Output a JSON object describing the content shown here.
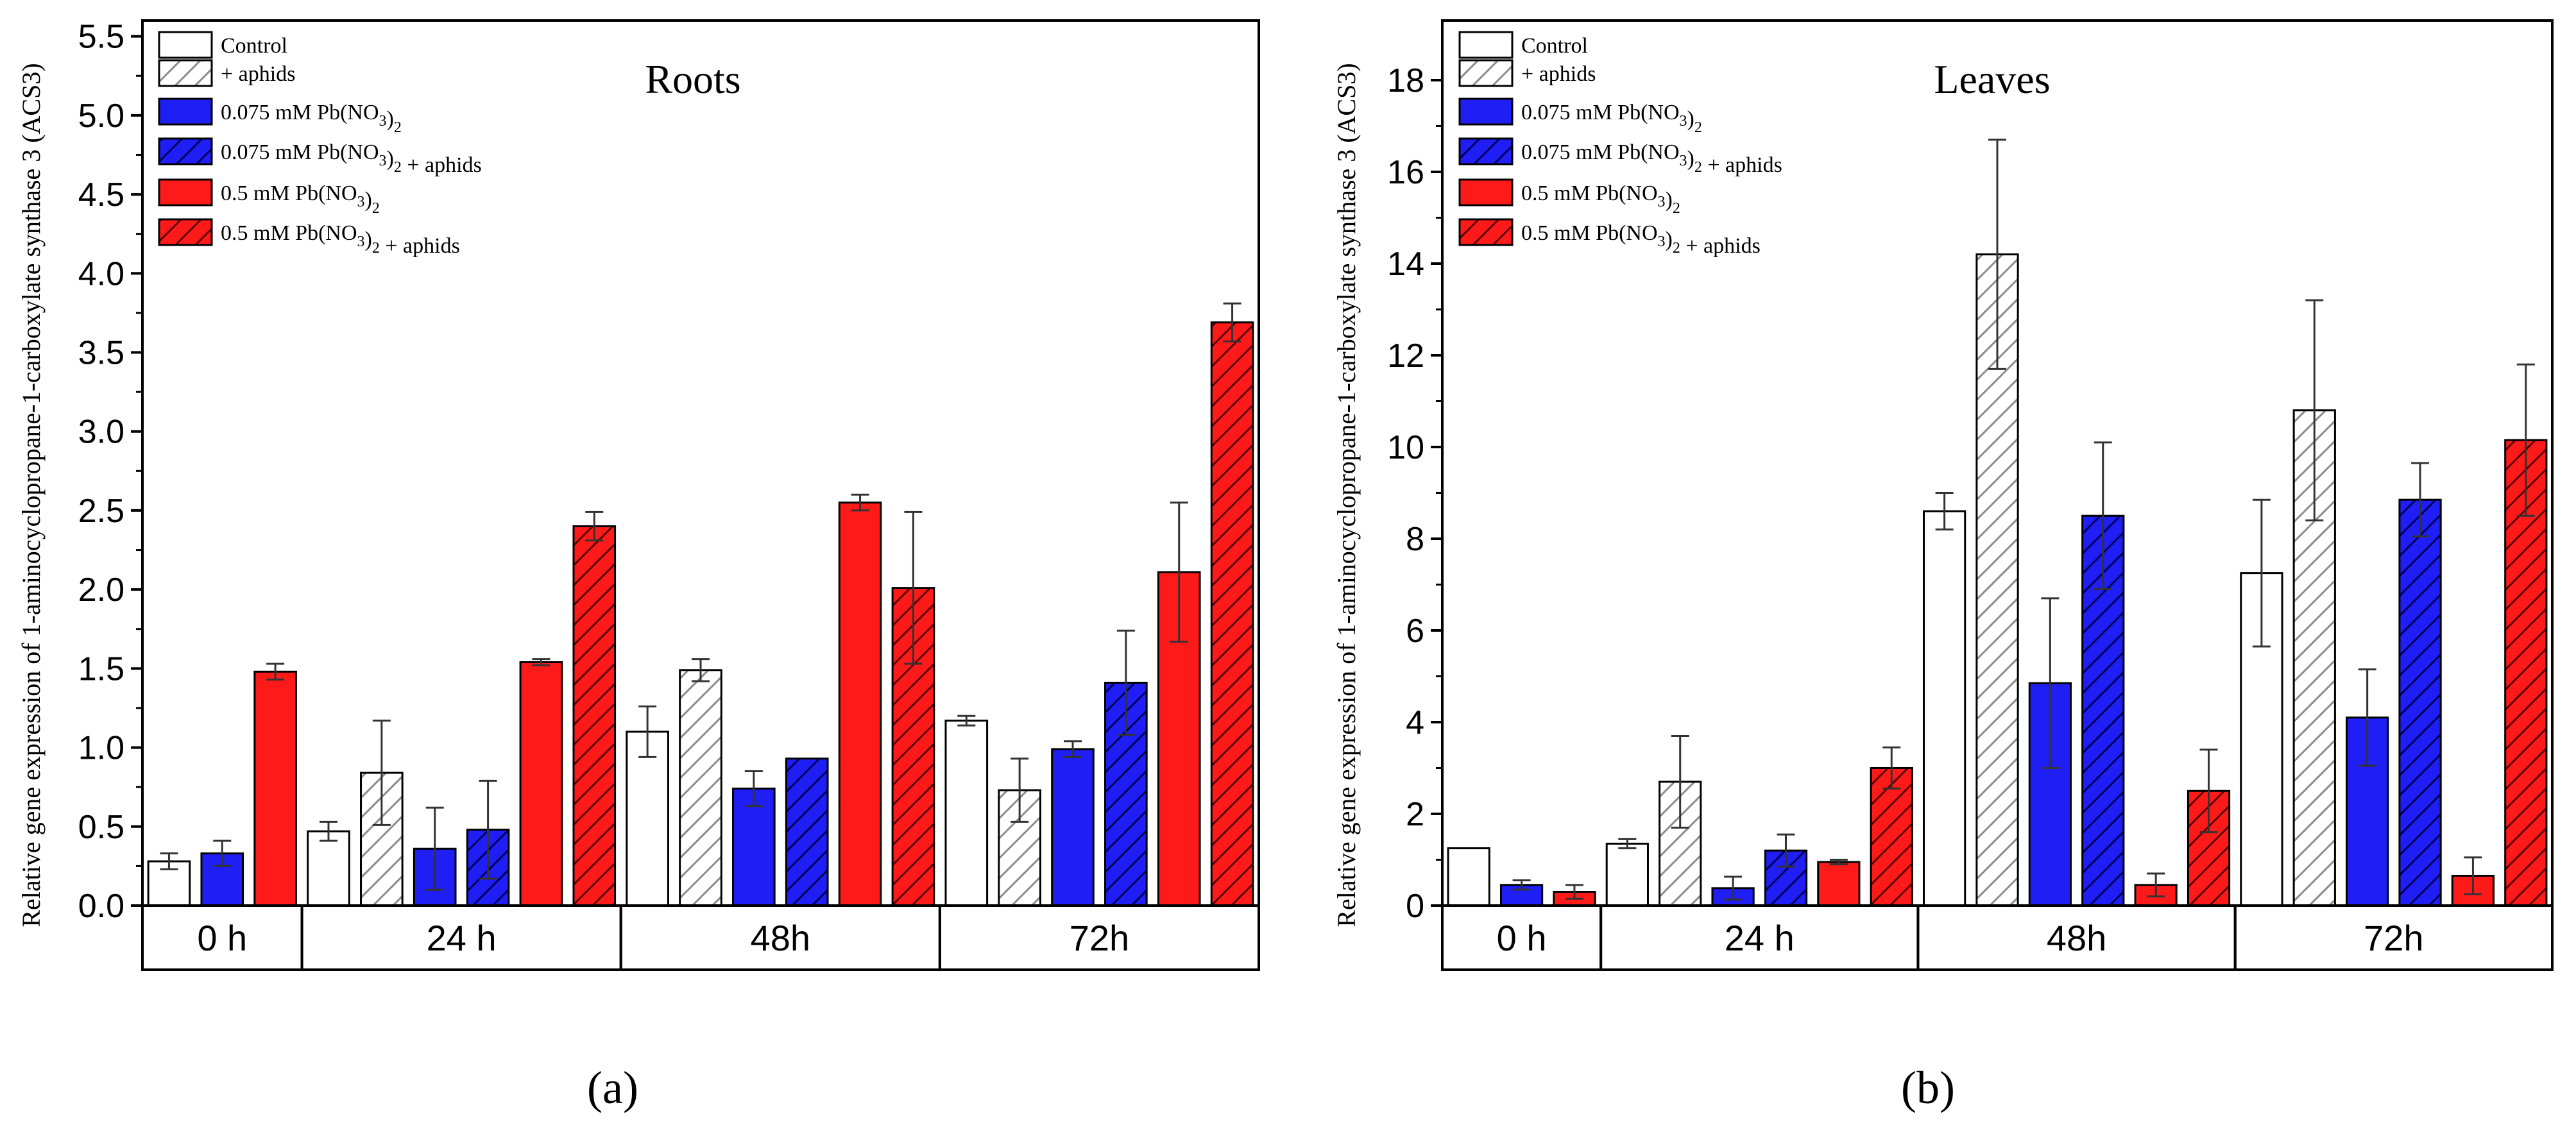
{
  "figure": {
    "panel_labels": [
      "(a)",
      "(b)"
    ]
  },
  "colors": {
    "control": "#ffffff",
    "aphids": "#ffffff",
    "pb075": "#1f1ff5",
    "pb075_aphids": "#1f1ff5",
    "pb05": "#ff1a1a",
    "pb05_aphids": "#ff1a1a",
    "aphids_hatch": "#8c8c8c",
    "blue_hatch": "#00005a",
    "red_hatch": "#5a0000"
  },
  "legend": [
    {
      "key": "control",
      "parts": [
        {
          "t": "Control"
        }
      ]
    },
    {
      "key": "aphids",
      "parts": [
        {
          "t": "+ aphids"
        }
      ]
    },
    {
      "key": "pb075",
      "parts": [
        {
          "t": "0.075 mM Pb(NO"
        },
        {
          "t": "3",
          "sub": true
        },
        {
          "t": ")"
        },
        {
          "t": "2",
          "sub": true
        }
      ]
    },
    {
      "key": "pb075_aphids",
      "parts": [
        {
          "t": "0.075 mM Pb(NO"
        },
        {
          "t": "3",
          "sub": true
        },
        {
          "t": ")"
        },
        {
          "t": "2",
          "sub": true
        },
        {
          "t": " +  aphids"
        }
      ]
    },
    {
      "key": "pb05",
      "parts": [
        {
          "t": "0.5 mM Pb(NO"
        },
        {
          "t": "3",
          "sub": true
        },
        {
          "t": ")"
        },
        {
          "t": "2",
          "sub": true
        }
      ]
    },
    {
      "key": "pb05_aphids",
      "parts": [
        {
          "t": "0.5 mM Pb(NO"
        },
        {
          "t": "3",
          "sub": true
        },
        {
          "t": ")"
        },
        {
          "t": "2",
          "sub": true
        },
        {
          "t": " + aphids"
        }
      ]
    }
  ],
  "chart_data": [
    {
      "type": "bar",
      "title": "Roots",
      "ylabel": "Relative gene expression of 1-aminocyclopropane-1-carboxylate synthase 3 (ACS3)",
      "xlabel": "",
      "ylim": [
        0,
        5.6
      ],
      "yticks": [
        0.0,
        0.5,
        1.0,
        1.5,
        2.0,
        2.5,
        3.0,
        3.5,
        4.0,
        4.5,
        5.0,
        5.5
      ],
      "ytick_labels": [
        "0.0",
        "0.5",
        "1.0",
        "1.5",
        "2.0",
        "2.5",
        "3.0",
        "3.5",
        "4.0",
        "4.5",
        "5.0",
        "5.5"
      ],
      "categories": [
        "0 h",
        "24 h",
        "48h",
        "72h"
      ],
      "groups": [
        {
          "category": "0 h",
          "bars": [
            {
              "key": "control",
              "value": 0.28,
              "err": 0.05
            },
            {
              "key": "pb075",
              "value": 0.33,
              "err": 0.08
            },
            {
              "key": "pb05",
              "value": 1.48,
              "err": 0.05
            }
          ]
        },
        {
          "category": "24 h",
          "bars": [
            {
              "key": "control",
              "value": 0.47,
              "err": 0.06
            },
            {
              "key": "aphids",
              "value": 0.84,
              "err": 0.33
            },
            {
              "key": "pb075",
              "value": 0.36,
              "err": 0.26
            },
            {
              "key": "pb075_aphids",
              "value": 0.48,
              "err": 0.31
            },
            {
              "key": "pb05",
              "value": 1.54,
              "err": 0.02
            },
            {
              "key": "pb05_aphids",
              "value": 2.4,
              "err": 0.09
            }
          ]
        },
        {
          "category": "48h",
          "bars": [
            {
              "key": "control",
              "value": 1.1,
              "err": 0.16
            },
            {
              "key": "aphids",
              "value": 1.49,
              "err": 0.07
            },
            {
              "key": "pb075",
              "value": 0.74,
              "err": 0.11
            },
            {
              "key": "pb075_aphids",
              "value": 0.93,
              "err": 0.0
            },
            {
              "key": "pb05",
              "value": 2.55,
              "err": 0.05
            },
            {
              "key": "pb05_aphids",
              "value": 2.01,
              "err": 0.48
            }
          ]
        },
        {
          "category": "72h",
          "bars": [
            {
              "key": "control",
              "value": 1.17,
              "err": 0.03
            },
            {
              "key": "aphids",
              "value": 0.73,
              "err": 0.2
            },
            {
              "key": "pb075",
              "value": 0.99,
              "err": 0.05
            },
            {
              "key": "pb075_aphids",
              "value": 1.41,
              "err": 0.33
            },
            {
              "key": "pb05",
              "value": 2.11,
              "err": 0.44
            },
            {
              "key": "pb05_aphids",
              "value": 3.69,
              "err": 0.12
            }
          ]
        }
      ]
    },
    {
      "type": "bar",
      "title": "Leaves",
      "ylabel": "Relative gene expression of 1-aminocyclopropane-1-carboxylate synthase 3 (ACS3)",
      "xlabel": "",
      "ylim": [
        0,
        19.3
      ],
      "yticks": [
        0,
        2,
        4,
        6,
        8,
        10,
        12,
        14,
        16,
        18
      ],
      "ytick_labels": [
        "0",
        "2",
        "4",
        "6",
        "8",
        "10",
        "12",
        "14",
        "16",
        "18"
      ],
      "categories": [
        "0 h",
        "24 h",
        "48h",
        "72h"
      ],
      "groups": [
        {
          "category": "0 h",
          "bars": [
            {
              "key": "control",
              "value": 1.25,
              "err": 0.0
            },
            {
              "key": "pb075",
              "value": 0.45,
              "err": 0.1
            },
            {
              "key": "pb05",
              "value": 0.3,
              "err": 0.15
            }
          ]
        },
        {
          "category": "24 h",
          "bars": [
            {
              "key": "control",
              "value": 1.35,
              "err": 0.1
            },
            {
              "key": "aphids",
              "value": 2.7,
              "err": 1.0
            },
            {
              "key": "pb075",
              "value": 0.38,
              "err": 0.25
            },
            {
              "key": "pb075_aphids",
              "value": 1.2,
              "err": 0.35
            },
            {
              "key": "pb05",
              "value": 0.95,
              "err": 0.05
            },
            {
              "key": "pb05_aphids",
              "value": 3.0,
              "err": 0.45
            }
          ]
        },
        {
          "category": "48h",
          "bars": [
            {
              "key": "control",
              "value": 8.6,
              "err": 0.4
            },
            {
              "key": "aphids",
              "value": 14.2,
              "err": 2.5
            },
            {
              "key": "pb075",
              "value": 4.85,
              "err": 1.85
            },
            {
              "key": "pb075_aphids",
              "value": 8.5,
              "err": 1.6
            },
            {
              "key": "pb05",
              "value": 0.45,
              "err": 0.25
            },
            {
              "key": "pb05_aphids",
              "value": 2.5,
              "err": 0.9
            }
          ]
        },
        {
          "category": "72h",
          "bars": [
            {
              "key": "control",
              "value": 7.25,
              "err": 1.6
            },
            {
              "key": "aphids",
              "value": 10.8,
              "err": 2.4
            },
            {
              "key": "pb075",
              "value": 4.1,
              "err": 1.05
            },
            {
              "key": "pb075_aphids",
              "value": 8.85,
              "err": 0.8
            },
            {
              "key": "pb05",
              "value": 0.65,
              "err": 0.4
            },
            {
              "key": "pb05_aphids",
              "value": 10.15,
              "err": 1.65
            }
          ]
        }
      ]
    }
  ]
}
